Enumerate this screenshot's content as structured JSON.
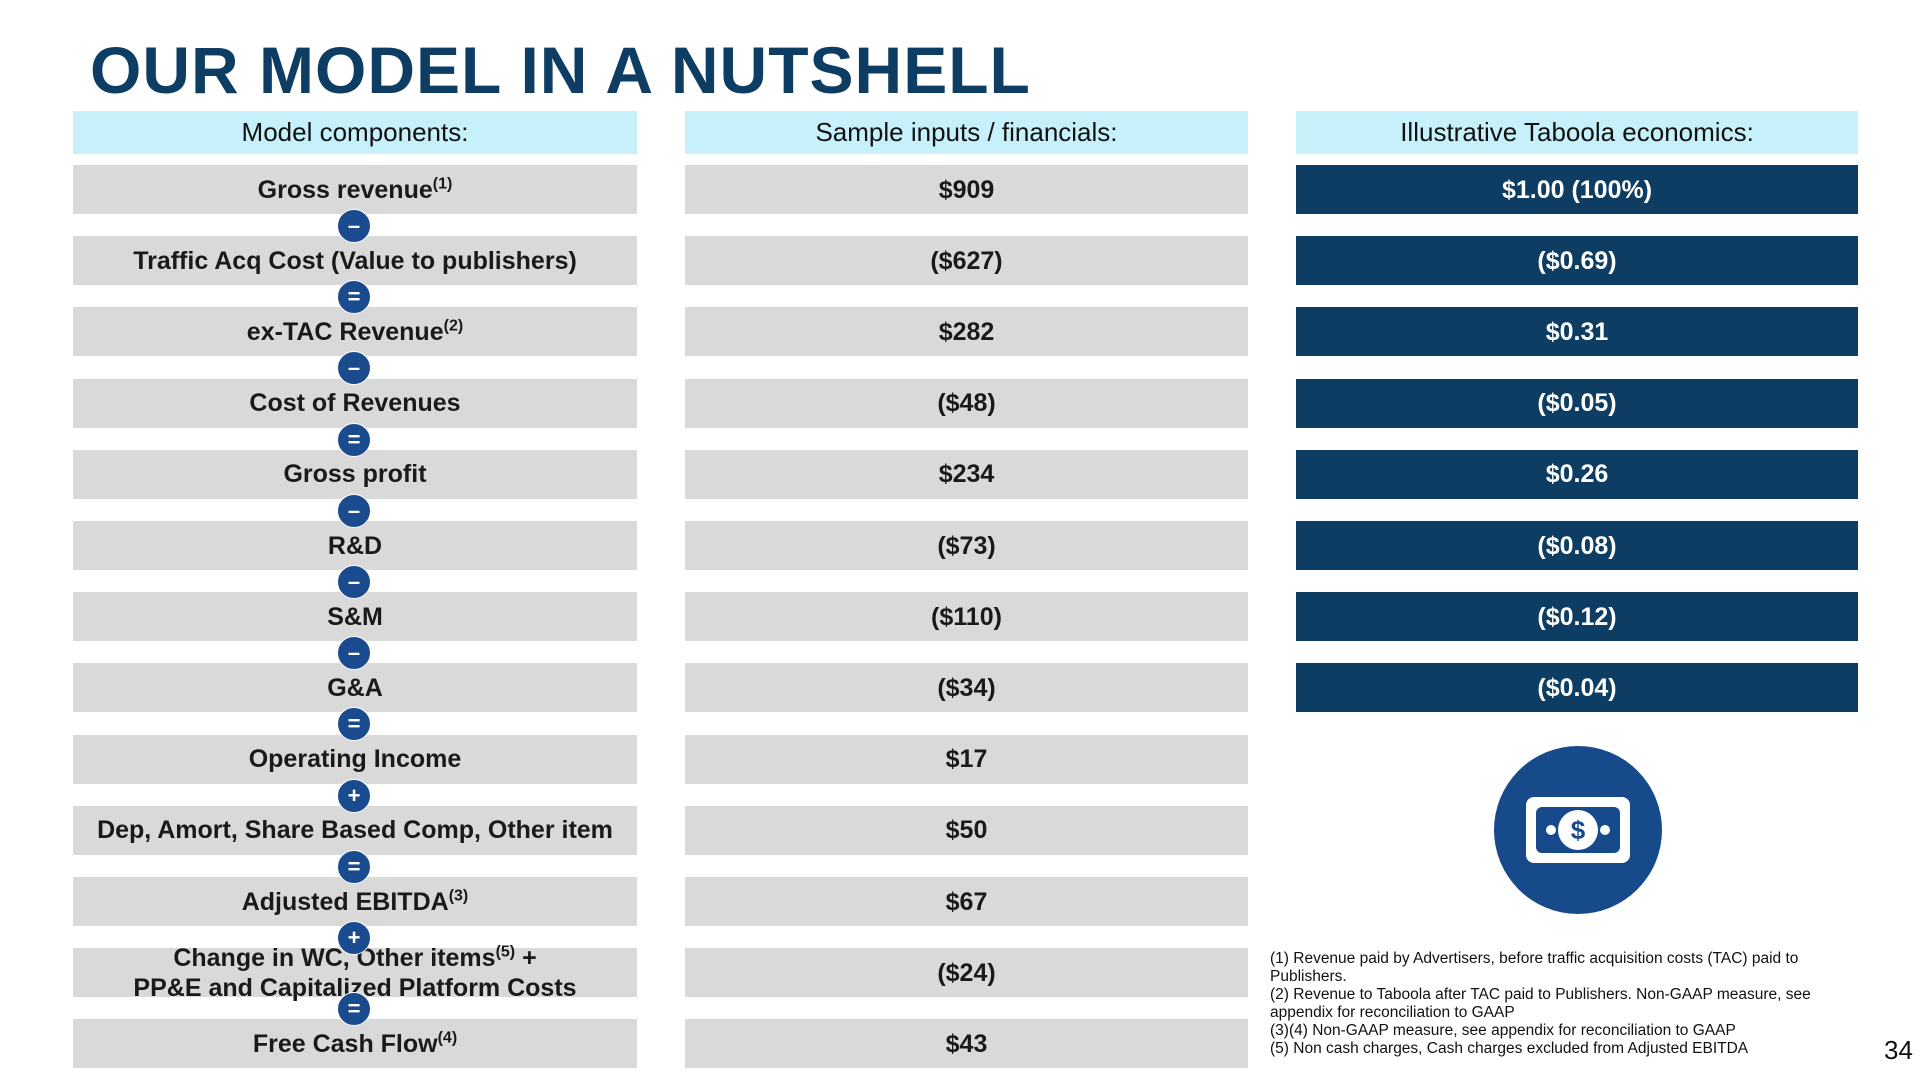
{
  "title": "OUR MODEL IN A NUTSHELL",
  "headers": [
    "Model components:",
    "Sample inputs / financials:",
    "Illustrative Taboola economics:"
  ],
  "rows": [
    {
      "label": "Gross revenue",
      "note": "(1)",
      "sample": "$909",
      "economics": "$1.00 (100%)"
    },
    {
      "label": "Traffic Acq Cost (Value to publishers)",
      "sample": "($627)",
      "economics": "($0.69)"
    },
    {
      "label": "ex-TAC Revenue",
      "note": "(2)",
      "sample": "$282",
      "economics": "$0.31"
    },
    {
      "label": "Cost of Revenues",
      "sample": "($48)",
      "economics": "($0.05)"
    },
    {
      "label": "Gross profit",
      "sample": "$234",
      "economics": "$0.26"
    },
    {
      "label": "R&D",
      "sample": "($73)",
      "economics": "($0.08)"
    },
    {
      "label": "S&M",
      "sample": "($110)",
      "economics": "($0.12)"
    },
    {
      "label": "G&A",
      "sample": "($34)",
      "economics": "($0.04)"
    },
    {
      "label": "Operating Income",
      "sample": "$17"
    },
    {
      "label": "Dep, Amort, Share Based Comp, Other item",
      "sample": "$50"
    },
    {
      "label": "Adjusted EBITDA",
      "note": "(3)",
      "sample": "$67"
    },
    {
      "label": "Change in WC, Other items",
      "note": "(5)",
      "suffix": " +",
      "label_line2": "PP&E and Capitalized Platform Costs",
      "sample": "($24)"
    },
    {
      "label": "Free Cash Flow",
      "note": "(4)",
      "sample": "$43"
    }
  ],
  "operators": [
    "–",
    "=",
    "–",
    "=",
    "–",
    "–",
    "–",
    "=",
    "+",
    "=",
    "+",
    "="
  ],
  "footnotes": [
    "(1) Revenue paid by Advertisers, before traffic acquisition costs (TAC) paid to Publishers.",
    "(2) Revenue to Taboola after TAC paid to Publishers. Non-GAAP measure, see appendix for reconciliation to GAAP",
    "(3)(4) Non-GAAP measure, see appendix for reconciliation to GAAP",
    "(5) Non cash charges, Cash charges excluded from Adjusted EBITDA"
  ],
  "page_number": "34"
}
